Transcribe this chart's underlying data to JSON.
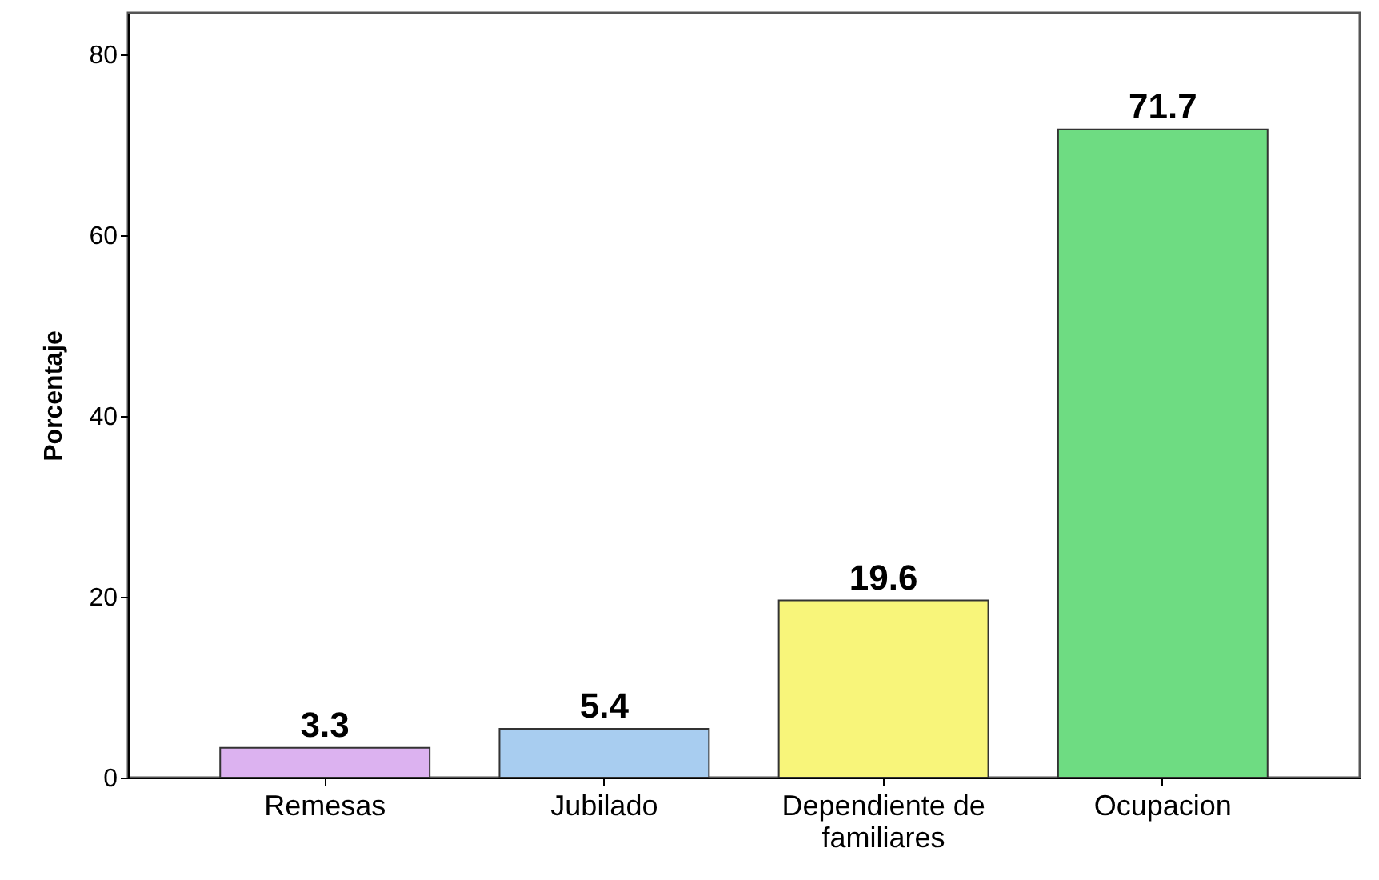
{
  "chart_data": {
    "type": "bar",
    "ylabel": "Porcentaje",
    "categories": [
      "Remesas",
      "Jubilado",
      "Dependiente de\nfamiliares",
      "Ocupacion"
    ],
    "values": [
      3.3,
      5.4,
      19.6,
      71.7
    ],
    "colors": [
      "#dcb2f0",
      "#a8cdf0",
      "#f8f57a",
      "#6edc82"
    ],
    "ylim": [
      0,
      84.6
    ],
    "yticks": [
      0,
      20,
      40,
      60,
      80
    ],
    "grid": false,
    "data_labels": true
  }
}
